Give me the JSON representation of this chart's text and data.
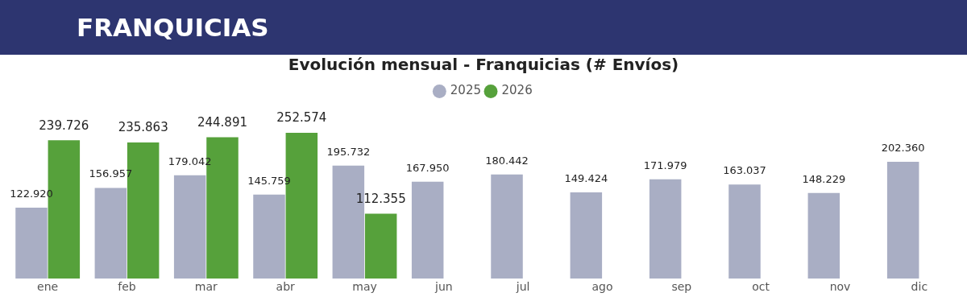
{
  "chart_data": {
    "type": "bar",
    "title": "FRANQUICIAS",
    "subtitle": "Evolución mensual - Franquicias (# Envíos)",
    "categories": [
      "ene",
      "feb",
      "mar",
      "abr",
      "may",
      "jun",
      "jul",
      "ago",
      "sep",
      "oct",
      "nov",
      "dic"
    ],
    "series": [
      {
        "name": "2025",
        "color": "#a9aec4",
        "values": [
          122920,
          156957,
          179042,
          145759,
          195732,
          167950,
          180442,
          149424,
          171979,
          163037,
          148229,
          202360
        ],
        "value_labels": [
          "122.920",
          "156.957",
          "179.042",
          "145.759",
          "195.732",
          "167.950",
          "180.442",
          "149.424",
          "171.979",
          "163.037",
          "148.229",
          "202.360"
        ]
      },
      {
        "name": "2026",
        "color": "#56a13b",
        "values": [
          239726,
          235863,
          244891,
          252574,
          112355,
          null,
          null,
          null,
          null,
          null,
          null,
          null
        ],
        "value_labels": [
          "239.726",
          "235.863",
          "244.891",
          "252.574",
          "112.355",
          null,
          null,
          null,
          null,
          null,
          null,
          null
        ]
      }
    ],
    "tick_labels": "x",
    "legend": "top"
  }
}
